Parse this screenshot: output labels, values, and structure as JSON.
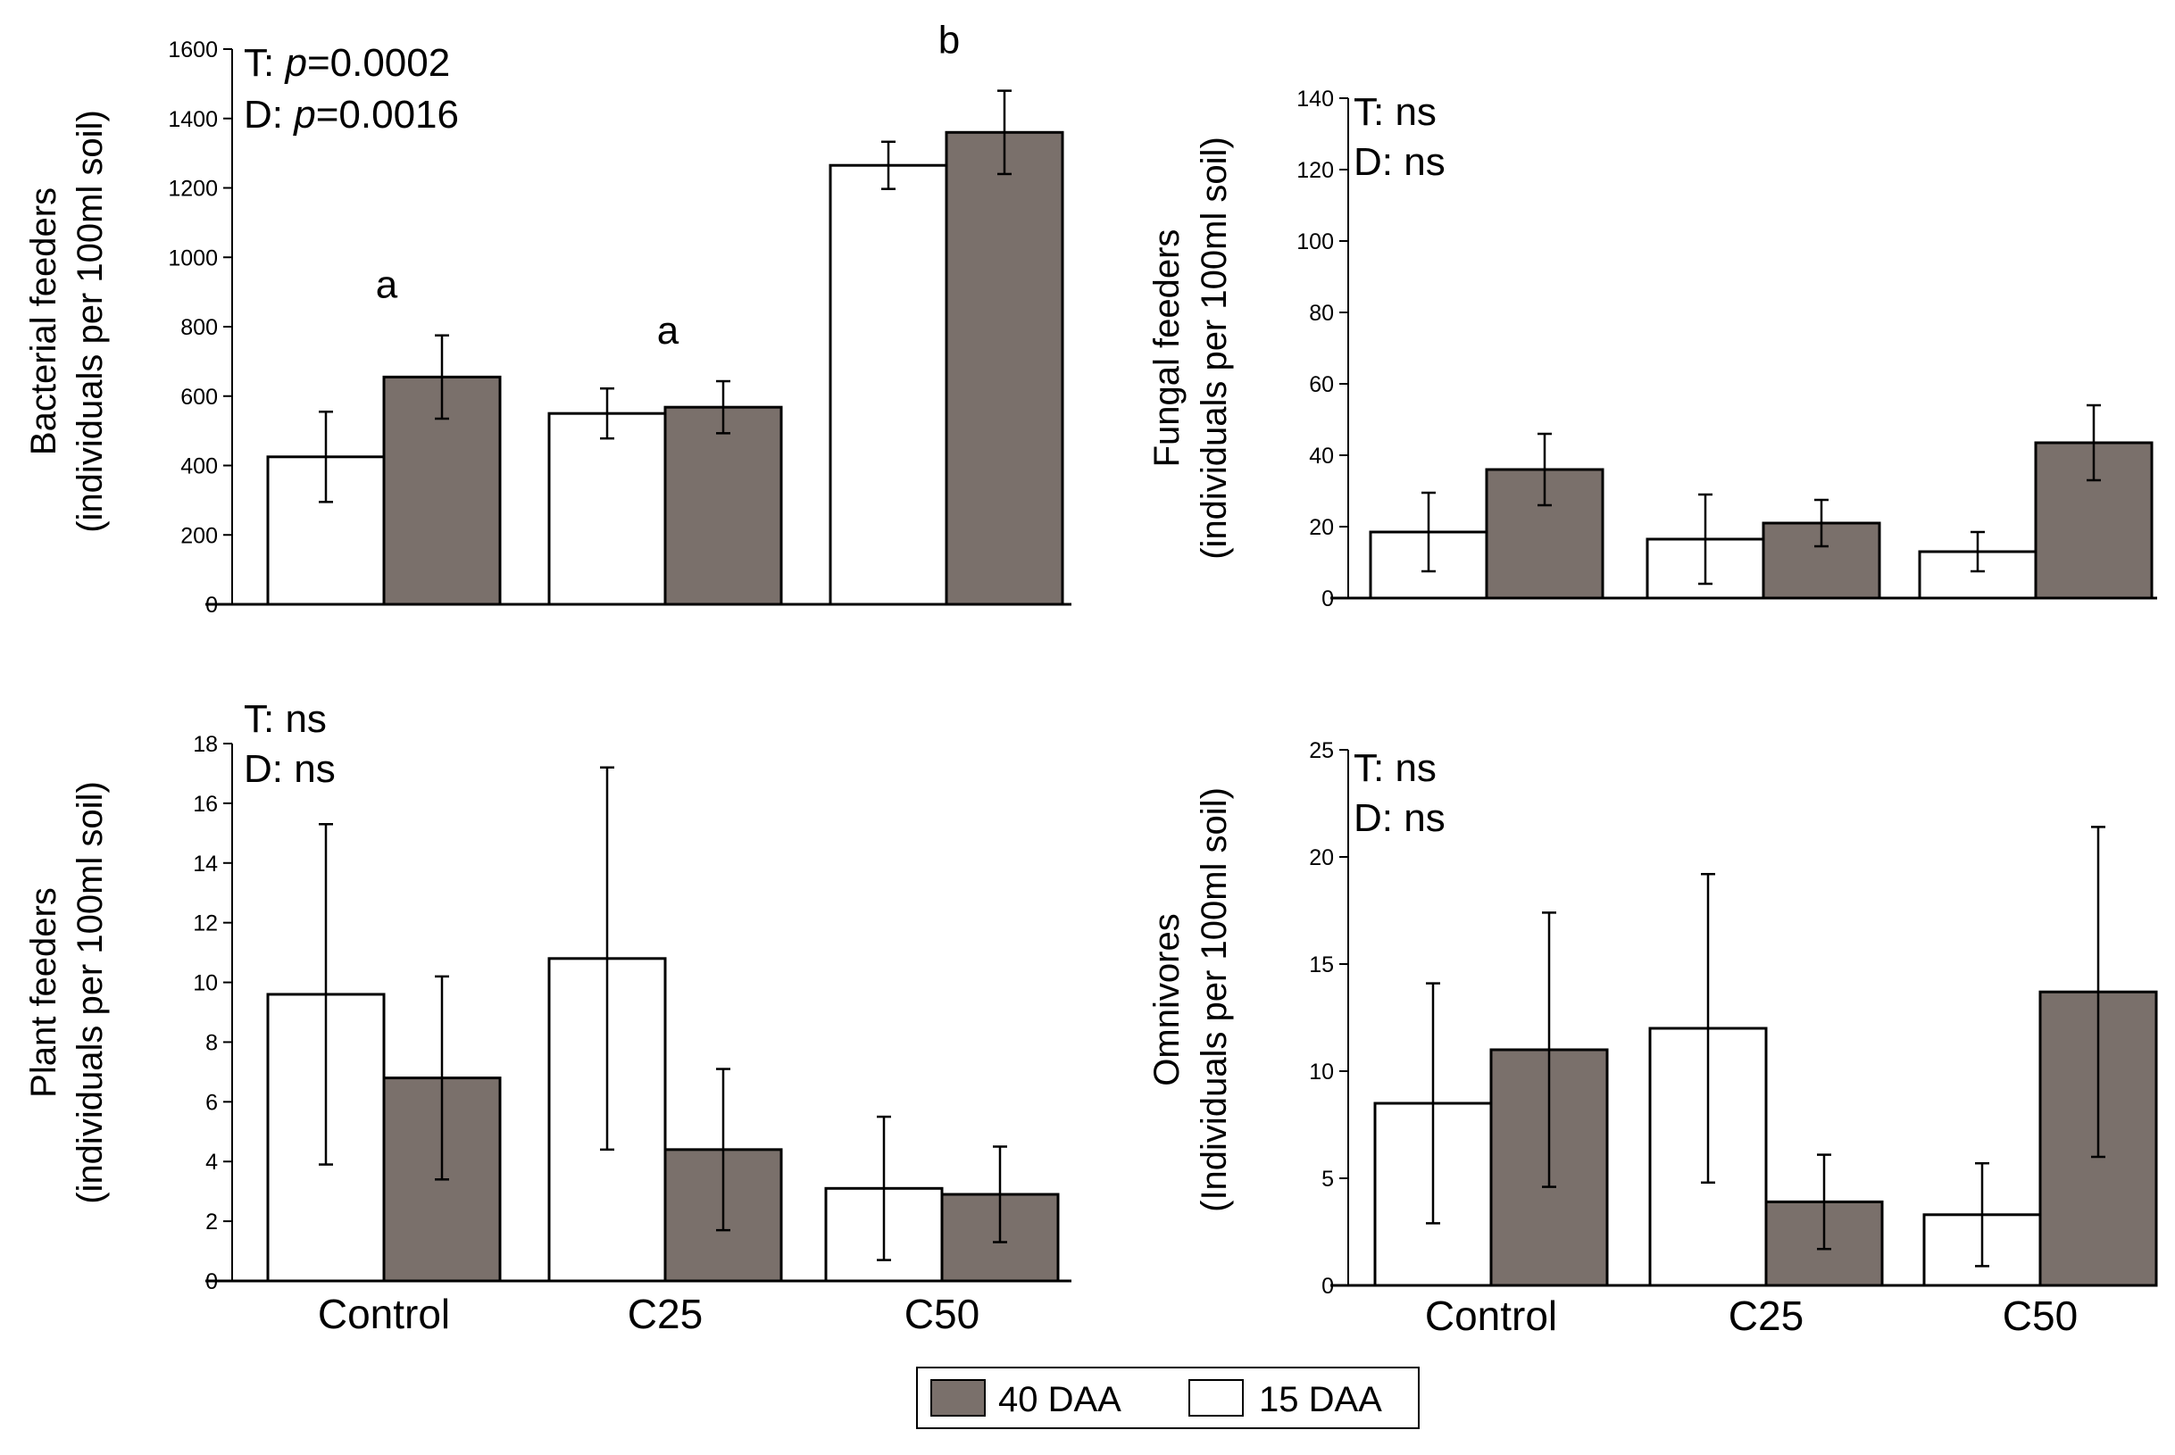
{
  "colors": {
    "day40": "#7a706b",
    "day15": "#ffffff",
    "outline": "#000000"
  },
  "legend": {
    "items": [
      {
        "label": "40 DAA",
        "color": "#7a706b"
      },
      {
        "label": "15 DAA",
        "color": "#ffffff"
      }
    ]
  },
  "chart_data": [
    {
      "type": "bar",
      "categories": [
        "Control",
        "C25",
        "C50"
      ],
      "ylabel_line1": "Bacterial feeders",
      "ylabel_line2": "(individuals per 100ml soil)",
      "ylim": [
        0,
        1600
      ],
      "yticks": [
        0,
        200,
        400,
        600,
        800,
        1000,
        1200,
        1400,
        1600
      ],
      "series": [
        {
          "name": "15 DAA",
          "values": [
            425,
            550,
            1265
          ],
          "errors": [
            130,
            72,
            68
          ]
        },
        {
          "name": "40 DAA",
          "values": [
            655,
            568,
            1360
          ],
          "errors": [
            120,
            75,
            120
          ]
        }
      ],
      "annotations": {
        "t_prefix": "T: ",
        "t_p": "p",
        "t_value": "=0.0002",
        "d_prefix": "D: ",
        "d_p": "p",
        "d_value": "=0.0016"
      },
      "letters": [
        {
          "category": "Control",
          "text": "a"
        },
        {
          "category": "C25",
          "text": "a"
        },
        {
          "category": "C50",
          "text": "b"
        }
      ]
    },
    {
      "type": "bar",
      "categories": [
        "Control",
        "C25",
        "C50"
      ],
      "ylabel_line1": "Fungal feeders",
      "ylabel_line2": "(individuals per 100ml soil)",
      "ylim": [
        0,
        140
      ],
      "yticks": [
        0,
        20,
        40,
        60,
        80,
        100,
        120,
        140
      ],
      "series": [
        {
          "name": "15 DAA",
          "values": [
            18.5,
            16.5,
            13
          ],
          "errors": [
            11,
            12.5,
            5.5
          ]
        },
        {
          "name": "40 DAA",
          "values": [
            36,
            21,
            43.5
          ],
          "errors": [
            10,
            6.5,
            10.5
          ]
        }
      ],
      "annotations": {
        "t_text": "T: ns",
        "d_text": "D: ns"
      }
    },
    {
      "type": "bar",
      "categories": [
        "Control",
        "C25",
        "C50"
      ],
      "ylabel_line1": "Plant feeders",
      "ylabel_line2": "(individuals per 100ml soil)",
      "ylim": [
        0,
        18
      ],
      "yticks": [
        0,
        2,
        4,
        6,
        8,
        10,
        12,
        14,
        16,
        18
      ],
      "series": [
        {
          "name": "15 DAA",
          "values": [
            9.6,
            10.8,
            3.1
          ],
          "errors": [
            5.7,
            6.4,
            2.4
          ]
        },
        {
          "name": "40 DAA",
          "values": [
            6.8,
            4.4,
            2.9
          ],
          "errors": [
            3.4,
            2.7,
            1.6
          ]
        }
      ],
      "annotations": {
        "t_text": "T: ns",
        "d_text": "D: ns"
      }
    },
    {
      "type": "bar",
      "categories": [
        "Control",
        "C25",
        "C50"
      ],
      "ylabel_line1": "Omnivores",
      "ylabel_line2": "(Individuals per 100ml soil)",
      "ylim": [
        0,
        25
      ],
      "yticks": [
        0,
        5,
        10,
        15,
        20,
        25
      ],
      "series": [
        {
          "name": "15 DAA",
          "values": [
            8.5,
            12,
            3.3
          ],
          "errors": [
            5.6,
            7.2,
            2.4
          ]
        },
        {
          "name": "40 DAA",
          "values": [
            11,
            3.9,
            13.7
          ],
          "errors": [
            6.4,
            2.2,
            7.7
          ]
        }
      ],
      "annotations": {
        "t_text": "T: ns",
        "d_text": "D: ns"
      }
    }
  ]
}
